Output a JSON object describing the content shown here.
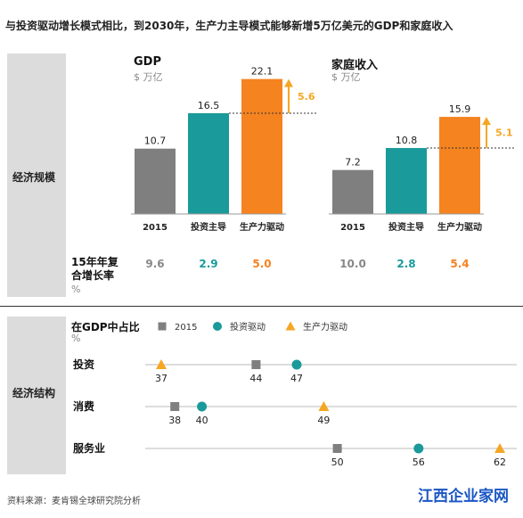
{
  "title": "与投资驱动增长模式相比，到2030年，生产力主导模式能够新增5万亿美元的GDP和家庭收入",
  "sections": {
    "economy_scale": "经济规模",
    "economy_structure": "经济结构"
  },
  "colors": {
    "baseline": "#7f7f7f",
    "investment": "#1a9a9a",
    "productivity": "#f5831f",
    "arrow": "#f5a623"
  },
  "chart_data": [
    {
      "type": "bar",
      "title": "GDP",
      "unit": "$ 万亿",
      "categories": [
        "2015",
        "投资主导",
        "生产力驱动"
      ],
      "values": [
        10.7,
        16.5,
        22.1
      ],
      "annotation": {
        "label": "5.6",
        "from": 16.5,
        "to": 22.1
      },
      "cagr": [
        "9.6",
        "2.9",
        "5.0"
      ]
    },
    {
      "type": "bar",
      "title": "家庭收入",
      "unit": "$ 万亿",
      "categories": [
        "2015",
        "投资主导",
        "生产力驱动"
      ],
      "values": [
        7.2,
        10.8,
        15.9
      ],
      "annotation": {
        "label": "5.1",
        "from": 10.8,
        "to": 15.9
      },
      "cagr": [
        "10.0",
        "2.8",
        "5.4"
      ]
    },
    {
      "type": "scatter",
      "title": "在GDP中占比",
      "unit": "%",
      "legend": [
        {
          "name": "2015",
          "marker": "square"
        },
        {
          "name": "投资驱动",
          "marker": "circle"
        },
        {
          "name": "生产力驱动",
          "marker": "triangle"
        }
      ],
      "rows": [
        {
          "label": "投资",
          "values": {
            "2015": 44,
            "投资驱动": 47,
            "生产力驱动": 37
          }
        },
        {
          "label": "消费",
          "values": {
            "2015": 38,
            "投资驱动": 40,
            "生产力驱动": 49
          }
        },
        {
          "label": "服务业",
          "values": {
            "2015": 50,
            "投资驱动": 56,
            "生产力驱动": 62
          }
        }
      ]
    }
  ],
  "cagr_label": "15年年复合增长率",
  "cagr_unit": "%",
  "source": "资料来源：麦肯锡全球研究院分析",
  "watermark": "江西企业家网"
}
